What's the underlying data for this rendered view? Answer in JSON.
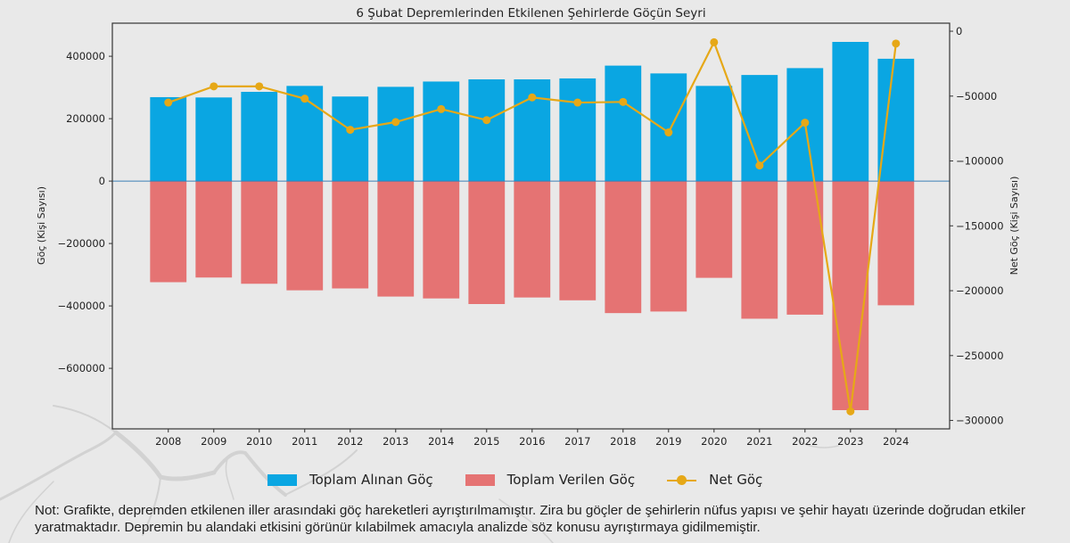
{
  "colors": {
    "received": "#0aa6e2",
    "sent": "#e57373",
    "net": "#e6a817",
    "zero_line": "#3b7fb5",
    "axis": "#333333"
  },
  "chart_data": {
    "type": "bar",
    "title": "6 Şubat Depremlerinden Etkilenen Şehirlerde Göçün Seyri",
    "xlabel": "",
    "ylabel": "Göç (Kişi Sayısı)",
    "y2label": "Net Göç (Kişi Sayısı)",
    "categories": [
      "2008",
      "2009",
      "2010",
      "2011",
      "2012",
      "2013",
      "2014",
      "2015",
      "2016",
      "2017",
      "2018",
      "2019",
      "2020",
      "2021",
      "2022",
      "2023",
      "2024"
    ],
    "series": [
      {
        "name": "Toplam Alınan Göç",
        "type": "bar",
        "axis": "left",
        "values": [
          269000,
          268000,
          286000,
          305000,
          271000,
          302000,
          319000,
          326000,
          326000,
          329000,
          370000,
          345000,
          305000,
          340000,
          362000,
          446000,
          392000
        ]
      },
      {
        "name": "Toplam Verilen Göç",
        "type": "bar",
        "axis": "left",
        "values": [
          -324000,
          -309000,
          -329000,
          -350000,
          -344000,
          -370000,
          -376000,
          -394000,
          -373000,
          -382000,
          -423000,
          -418000,
          -310000,
          -441000,
          -428000,
          -734000,
          -398000
        ]
      },
      {
        "name": "Net Göç",
        "type": "line",
        "axis": "right",
        "values": [
          -55000,
          -42500,
          -42500,
          -52000,
          -76000,
          -70000,
          -60000,
          -68500,
          -51000,
          -55000,
          -54500,
          -78000,
          -8500,
          -103500,
          -70500,
          -293000,
          -9500
        ]
      }
    ],
    "ylim": [
      -794000,
      506000
    ],
    "y2lim": [
      -306500,
      6200
    ],
    "xlim": [
      2006.77,
      2025.18
    ],
    "yticks": [
      -600000,
      -400000,
      -200000,
      0,
      200000,
      400000
    ],
    "ytick_labels": [
      "−600000",
      "−400000",
      "−200000",
      "0",
      "200000",
      "400000"
    ],
    "y2ticks": [
      -300000,
      -250000,
      -200000,
      -150000,
      -100000,
      -50000,
      0
    ],
    "y2tick_labels": [
      "−300000",
      "−250000",
      "−200000",
      "−150000",
      "−100000",
      "−50000",
      "0"
    ],
    "grid": false,
    "legend_position": "bottom-center"
  },
  "legend": [
    {
      "label": "Toplam Alınan Göç",
      "kind": "bar"
    },
    {
      "label": "Toplam Verilen Göç",
      "kind": "bar"
    },
    {
      "label": "Net Göç",
      "kind": "line"
    }
  ],
  "note": "Not: Grafikte, depremden etkilenen iller arasındaki göç hareketleri ayrıştırılmamıştır. Zira bu göçler de şehirlerin nüfus yapısı ve şehir hayatı üzerinde doğrudan etkiler yaratmaktadır. Depremin bu alandaki etkisini görünür kılabilmek amacıyla analizde söz konusu ayrıştırmaya gidilmemiştir."
}
